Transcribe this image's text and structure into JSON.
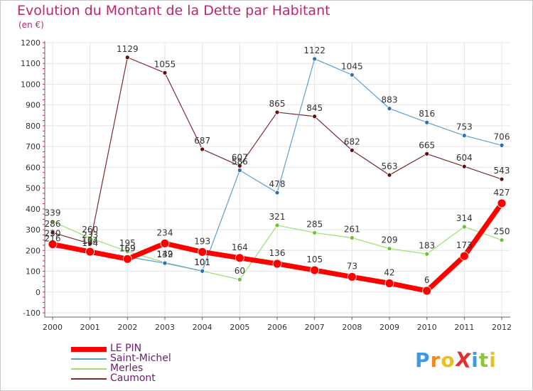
{
  "chart": {
    "title": "Evolution du Montant de la Dette par Habitant",
    "subtitle": "(en €)"
  },
  "logo": {
    "text": "ProXiti",
    "letters": [
      "P",
      "r",
      "o",
      "X",
      "i",
      "t",
      "i"
    ],
    "colors": [
      "#3a9be0",
      "#f08a1c",
      "#e8c020",
      "#e03030",
      "#3a9be0",
      "#8cc63e",
      "#e8c020"
    ]
  },
  "colors": {
    "LE PIN": "#ff0000",
    "Saint-Michel": "#5aa0d0",
    "Merles": "#99e070",
    "Caumont": "#7a2a2a",
    "markers": {
      "LE PIN": "#ff0000",
      "Saint-Michel": "#3070b0",
      "Merles": "#70c030",
      "Caumont": "#5a1010"
    },
    "grid": "#e4e4e4",
    "axis": "#666666",
    "tick": "#c0246a"
  },
  "chart_data": {
    "type": "line",
    "title": "Evolution du Montant de la Dette par Habitant",
    "subtitle": "(en €)",
    "xlabel": "",
    "ylabel": "",
    "x": [
      "2000",
      "2001",
      "2002",
      "2003",
      "2004",
      "2005",
      "2006",
      "2007",
      "2008",
      "2009",
      "2010",
      "2011",
      "2012"
    ],
    "ylim": [
      -100,
      1200
    ],
    "yticks": [
      -100,
      0,
      100,
      200,
      300,
      400,
      500,
      600,
      700,
      800,
      900,
      1000,
      1100,
      1200
    ],
    "grid": true,
    "legend_position": "bottom-left",
    "series": [
      {
        "name": "LE PIN",
        "values": [
          230,
          194,
          159,
          234,
          193,
          164,
          136,
          105,
          73,
          42,
          6,
          173,
          427
        ]
      },
      {
        "name": "Saint-Michel",
        "values": [
          216,
          194,
          169,
          139,
          101,
          586,
          478,
          1122,
          1045,
          883,
          816,
          753,
          706
        ]
      },
      {
        "name": "Merles",
        "values": [
          339,
          260,
          195,
          142,
          101,
          60,
          321,
          285,
          261,
          209,
          183,
          314,
          250
        ]
      },
      {
        "name": "Caumont",
        "values": [
          286,
          233,
          1129,
          1055,
          687,
          607,
          865,
          845,
          682,
          563,
          665,
          604,
          543
        ]
      }
    ],
    "data_labels": {
      "LE PIN": [
        "230",
        "194",
        "159",
        "234",
        "193",
        "164",
        "136",
        "105",
        "73",
        "42",
        "6",
        "173",
        "427"
      ],
      "Saint-Michel": [
        "216",
        "194",
        "169",
        "139",
        "101",
        "586",
        "478",
        "1122",
        "1045",
        "883",
        "816",
        "753",
        "706"
      ],
      "Merles": [
        "339",
        "260",
        "195",
        "142",
        "101",
        "60",
        "321",
        "285",
        "261",
        "209",
        "183",
        "314",
        "250"
      ],
      "Caumont": [
        "286",
        "233",
        "1129",
        "1055",
        "687",
        "607",
        "865",
        "845",
        "682",
        "563",
        "665",
        "604",
        "543"
      ]
    }
  }
}
